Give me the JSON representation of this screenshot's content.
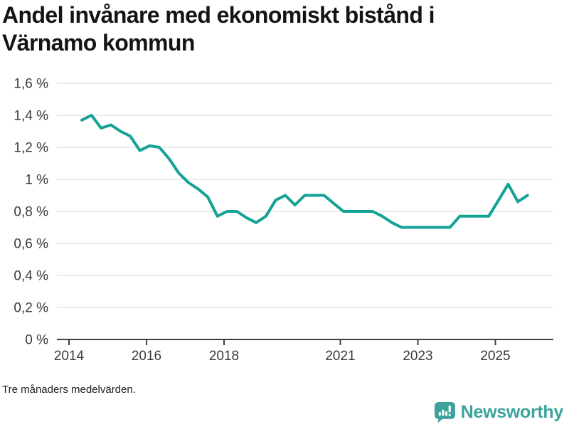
{
  "title": {
    "line1": "Andel invånare med ekonomiskt bistånd i",
    "line2": "Värnamo kommun"
  },
  "footnote": "Tre månaders medelvärden.",
  "branding": {
    "name": "Newsworthy",
    "color": "#3ba29c"
  },
  "colors": {
    "line": "#14a295",
    "grid": "#d8d8d8",
    "axis": "#3f3f3f",
    "tick_label": "#3a3a3a",
    "title_text": "#141414"
  },
  "chart_data": {
    "type": "line",
    "title": "Andel invånare med ekonomiskt bistånd i Värnamo kommun",
    "xlabel": "",
    "ylabel": "",
    "unit": "%",
    "decimal_style": "comma",
    "grid": "horizontal",
    "legend": "none",
    "footnote": "Tre månaders medelvärden.",
    "ylim": [
      0,
      1.6
    ],
    "xlim": [
      2013.7,
      2026.5
    ],
    "yticks": [
      {
        "value": 0.0,
        "label": "0 %"
      },
      {
        "value": 0.2,
        "label": "0,2 %"
      },
      {
        "value": 0.4,
        "label": "0,4 %"
      },
      {
        "value": 0.6,
        "label": "0,6 %"
      },
      {
        "value": 0.8,
        "label": "0,8 %"
      },
      {
        "value": 1.0,
        "label": "1 %"
      },
      {
        "value": 1.2,
        "label": "1,2 %"
      },
      {
        "value": 1.4,
        "label": "1,4 %"
      },
      {
        "value": 1.6,
        "label": "1,6 %"
      }
    ],
    "xticks": [
      {
        "value": 2014,
        "label": "2014"
      },
      {
        "value": 2016,
        "label": "2016"
      },
      {
        "value": 2018,
        "label": "2018"
      },
      {
        "value": 2021,
        "label": "2021"
      },
      {
        "value": 2023,
        "label": "2023"
      },
      {
        "value": 2025,
        "label": "2025"
      }
    ],
    "series_name": "Andel invånare med ekonomiskt bistånd, Värnamo kommun",
    "x": [
      2014.33,
      2014.58,
      2014.83,
      2015.08,
      2015.33,
      2015.58,
      2015.83,
      2016.08,
      2016.33,
      2016.58,
      2016.83,
      2017.08,
      2017.33,
      2017.58,
      2017.83,
      2018.08,
      2018.33,
      2018.58,
      2018.83,
      2019.08,
      2019.33,
      2019.58,
      2019.83,
      2020.08,
      2020.33,
      2020.58,
      2020.83,
      2021.08,
      2021.33,
      2021.58,
      2021.83,
      2022.08,
      2022.33,
      2022.58,
      2022.83,
      2023.08,
      2023.33,
      2023.58,
      2023.83,
      2024.08,
      2024.33,
      2024.58,
      2024.83,
      2025.08,
      2025.33,
      2025.58,
      2025.83
    ],
    "values": [
      1.37,
      1.4,
      1.32,
      1.34,
      1.3,
      1.27,
      1.18,
      1.21,
      1.2,
      1.13,
      1.04,
      0.98,
      0.94,
      0.89,
      0.77,
      0.8,
      0.8,
      0.76,
      0.73,
      0.77,
      0.87,
      0.9,
      0.84,
      0.9,
      0.9,
      0.9,
      0.85,
      0.8,
      0.8,
      0.8,
      0.8,
      0.77,
      0.73,
      0.7,
      0.7,
      0.7,
      0.7,
      0.7,
      0.7,
      0.77,
      0.77,
      0.77,
      0.77,
      0.87,
      0.97,
      0.86,
      0.9
    ]
  }
}
